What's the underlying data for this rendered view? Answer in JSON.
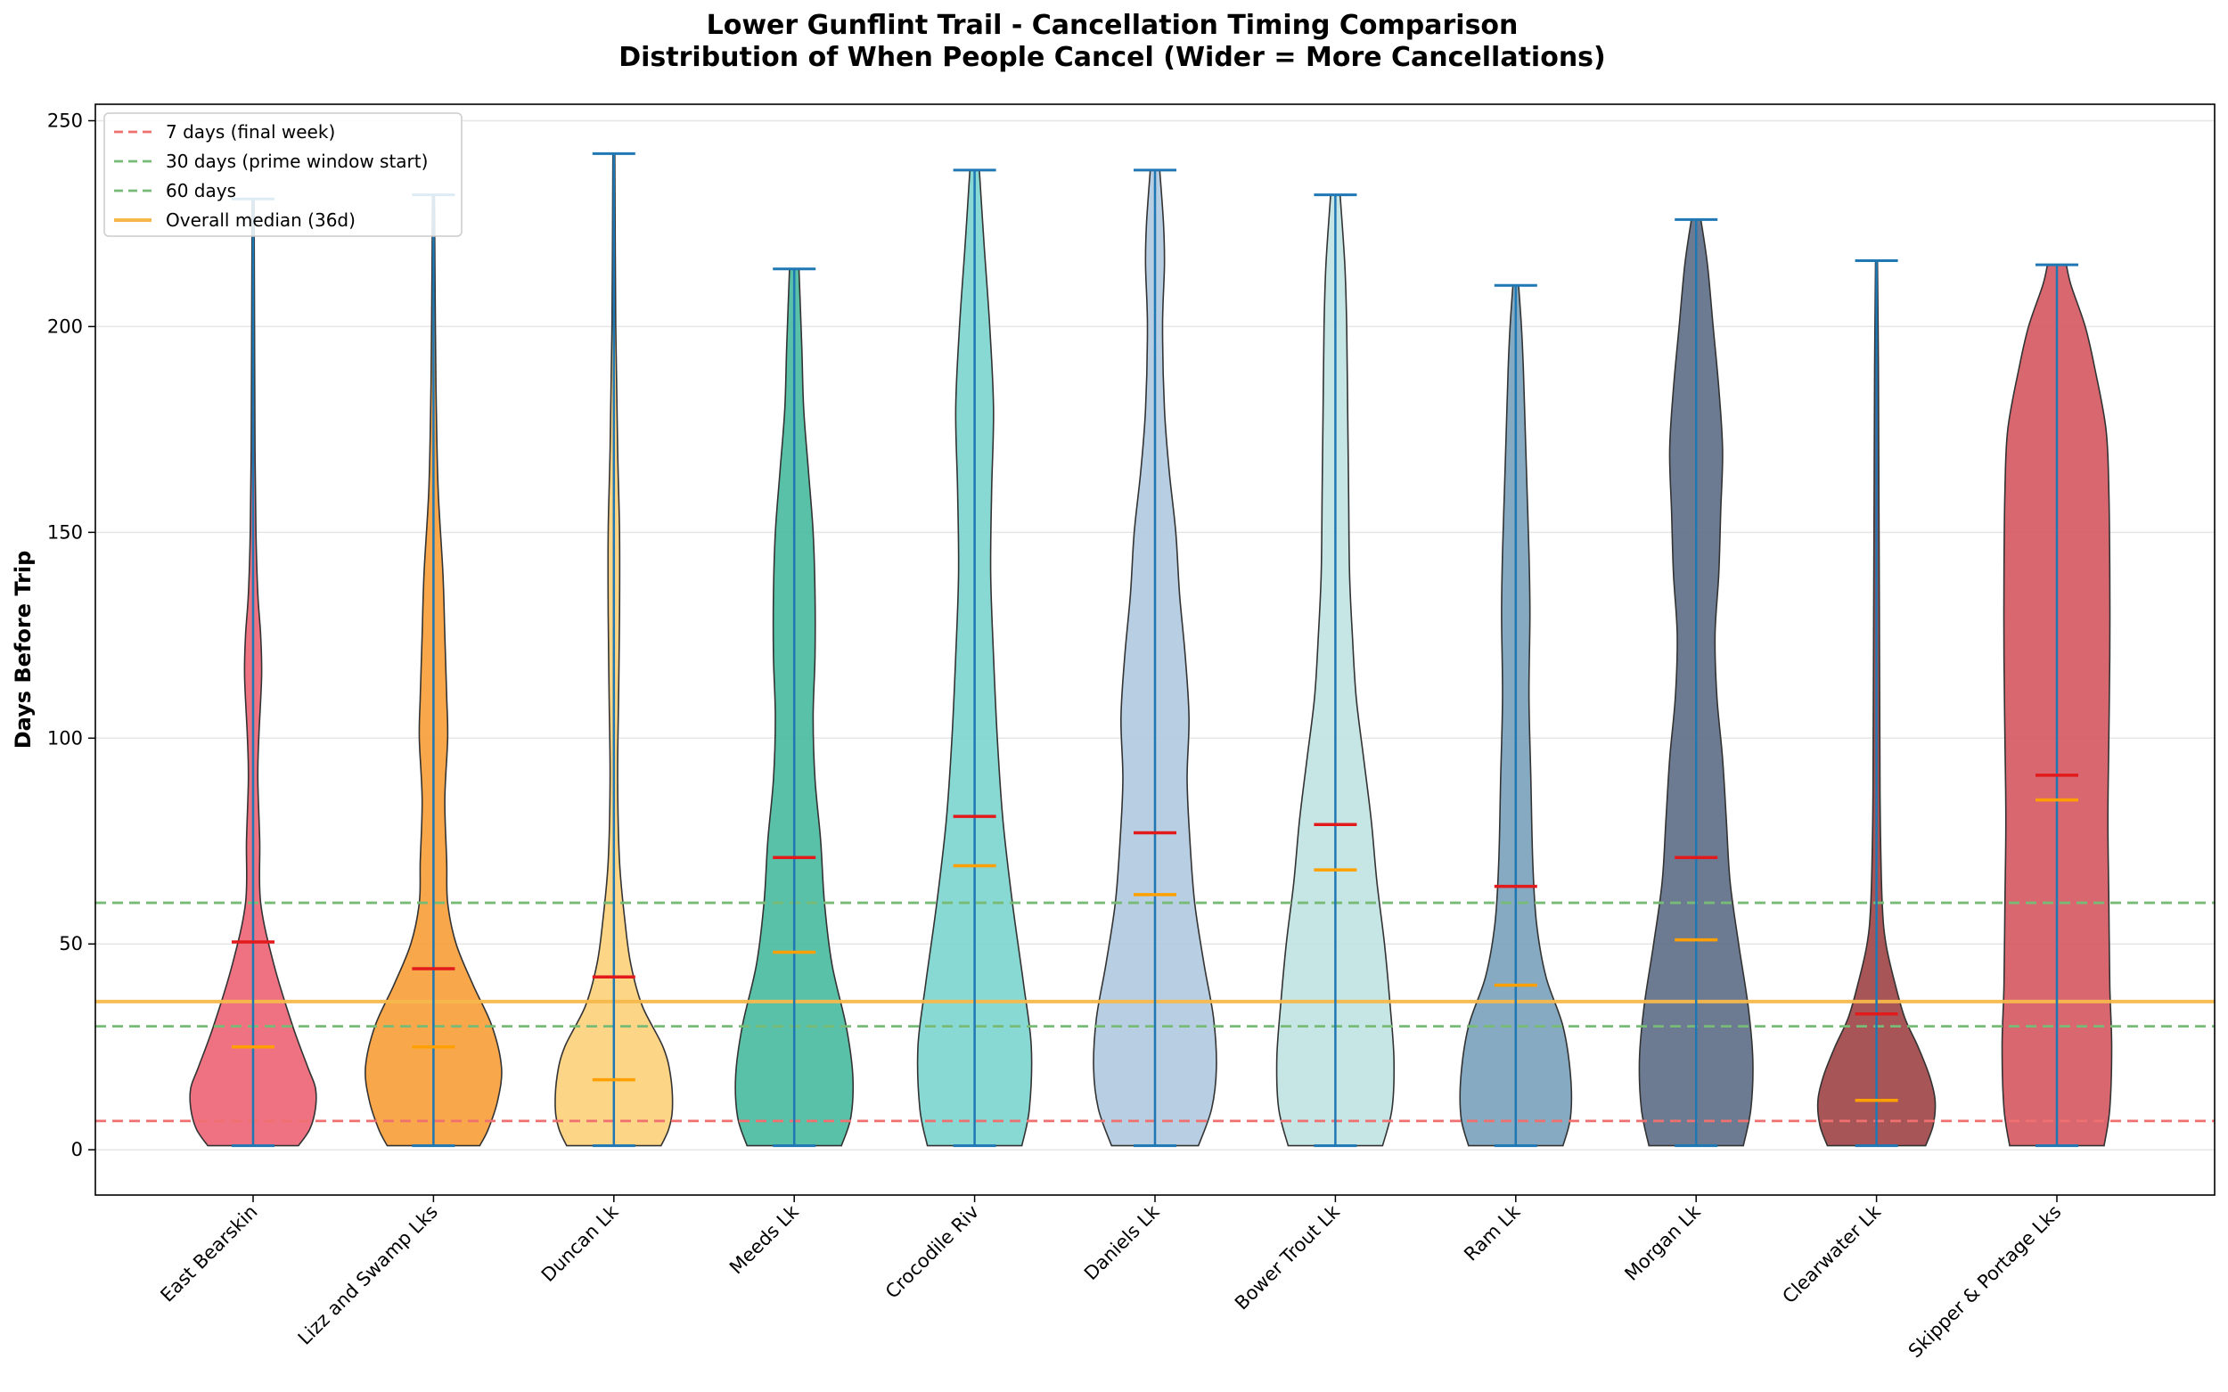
{
  "chart_data": {
    "type": "violin",
    "title": [
      "Lower Gunflint Trail - Cancellation Timing Comparison",
      "Distribution of When People Cancel (Wider = More Cancellations)"
    ],
    "xlabel": "",
    "ylabel": "Days Before Trip",
    "ylim": [
      -11,
      254
    ],
    "yticks": [
      0,
      50,
      100,
      150,
      200,
      250
    ],
    "grid": "horizontal",
    "legend_position": "top-left",
    "categories": [
      "East Bearskin",
      "Lizz and Swamp Lks",
      "Duncan Lk",
      "Meeds Lk",
      "Crocodile Riv",
      "Daniels Lk",
      "Bower Trout Lk",
      "Ram Lk",
      "Morgan Lk",
      "Clearwater Lk",
      "Skipper & Portage Lks"
    ],
    "series": [
      {
        "name": "East Bearskin",
        "color": "#EE6677",
        "min": 1,
        "max": 231,
        "mean": 50.5,
        "median": 25,
        "density": [
          [
            1,
            0.48
          ],
          [
            5,
            0.6
          ],
          [
            10,
            0.66
          ],
          [
            15,
            0.66
          ],
          [
            20,
            0.58
          ],
          [
            30,
            0.42
          ],
          [
            45,
            0.22
          ],
          [
            60,
            0.08
          ],
          [
            75,
            0.07
          ],
          [
            90,
            0.05
          ],
          [
            100,
            0.06
          ],
          [
            115,
            0.09
          ],
          [
            125,
            0.08
          ],
          [
            135,
            0.05
          ],
          [
            150,
            0.03
          ],
          [
            170,
            0.02
          ],
          [
            200,
            0.015
          ],
          [
            231,
            0.01
          ]
        ]
      },
      {
        "name": "Lizz and Swamp Lks",
        "color": "#F8A03C",
        "min": 1,
        "max": 232,
        "mean": 44,
        "median": 25,
        "density": [
          [
            1,
            0.49
          ],
          [
            5,
            0.58
          ],
          [
            12,
            0.68
          ],
          [
            20,
            0.72
          ],
          [
            30,
            0.62
          ],
          [
            40,
            0.42
          ],
          [
            50,
            0.24
          ],
          [
            60,
            0.15
          ],
          [
            70,
            0.14
          ],
          [
            85,
            0.12
          ],
          [
            100,
            0.15
          ],
          [
            110,
            0.14
          ],
          [
            125,
            0.12
          ],
          [
            140,
            0.1
          ],
          [
            160,
            0.05
          ],
          [
            180,
            0.03
          ],
          [
            200,
            0.02
          ],
          [
            232,
            0.01
          ]
        ]
      },
      {
        "name": "Duncan Lk",
        "color": "#FDD17C",
        "min": 1,
        "max": 242,
        "mean": 42,
        "median": 17,
        "density": [
          [
            1,
            0.5
          ],
          [
            5,
            0.58
          ],
          [
            10,
            0.62
          ],
          [
            18,
            0.6
          ],
          [
            25,
            0.52
          ],
          [
            35,
            0.3
          ],
          [
            45,
            0.18
          ],
          [
            55,
            0.12
          ],
          [
            70,
            0.06
          ],
          [
            90,
            0.04
          ],
          [
            110,
            0.05
          ],
          [
            130,
            0.06
          ],
          [
            150,
            0.06
          ],
          [
            170,
            0.04
          ],
          [
            200,
            0.02
          ],
          [
            242,
            0.01
          ]
        ]
      },
      {
        "name": "Meeds Lk",
        "color": "#4BBC9F",
        "min": 1,
        "max": 214,
        "mean": 71,
        "median": 48,
        "density": [
          [
            1,
            0.5
          ],
          [
            8,
            0.6
          ],
          [
            18,
            0.62
          ],
          [
            30,
            0.55
          ],
          [
            45,
            0.4
          ],
          [
            60,
            0.32
          ],
          [
            75,
            0.28
          ],
          [
            90,
            0.22
          ],
          [
            105,
            0.2
          ],
          [
            120,
            0.22
          ],
          [
            135,
            0.22
          ],
          [
            150,
            0.2
          ],
          [
            165,
            0.15
          ],
          [
            180,
            0.1
          ],
          [
            195,
            0.08
          ],
          [
            214,
            0.05
          ]
        ]
      },
      {
        "name": "Crocodile Riv",
        "color": "#7ED6CF",
        "min": 1,
        "max": 238,
        "mean": 81,
        "median": 69,
        "density": [
          [
            1,
            0.5
          ],
          [
            10,
            0.58
          ],
          [
            25,
            0.6
          ],
          [
            40,
            0.52
          ],
          [
            60,
            0.4
          ],
          [
            80,
            0.3
          ],
          [
            100,
            0.24
          ],
          [
            120,
            0.2
          ],
          [
            140,
            0.17
          ],
          [
            160,
            0.18
          ],
          [
            180,
            0.2
          ],
          [
            200,
            0.16
          ],
          [
            220,
            0.1
          ],
          [
            238,
            0.05
          ]
        ]
      },
      {
        "name": "Daniels Lk",
        "color": "#B2CAE0",
        "min": 1,
        "max": 238,
        "mean": 77,
        "median": 62,
        "density": [
          [
            1,
            0.46
          ],
          [
            10,
            0.6
          ],
          [
            20,
            0.65
          ],
          [
            32,
            0.62
          ],
          [
            45,
            0.52
          ],
          [
            60,
            0.42
          ],
          [
            75,
            0.37
          ],
          [
            90,
            0.34
          ],
          [
            105,
            0.36
          ],
          [
            120,
            0.32
          ],
          [
            135,
            0.26
          ],
          [
            150,
            0.22
          ],
          [
            165,
            0.15
          ],
          [
            180,
            0.1
          ],
          [
            200,
            0.08
          ],
          [
            215,
            0.1
          ],
          [
            225,
            0.09
          ],
          [
            238,
            0.05
          ]
        ]
      },
      {
        "name": "Bower Trout Lk",
        "color": "#C1E3E3",
        "min": 1,
        "max": 232,
        "mean": 79,
        "median": 68,
        "density": [
          [
            1,
            0.5
          ],
          [
            10,
            0.6
          ],
          [
            22,
            0.62
          ],
          [
            35,
            0.58
          ],
          [
            50,
            0.52
          ],
          [
            65,
            0.44
          ],
          [
            80,
            0.38
          ],
          [
            95,
            0.3
          ],
          [
            110,
            0.22
          ],
          [
            125,
            0.18
          ],
          [
            140,
            0.15
          ],
          [
            160,
            0.14
          ],
          [
            180,
            0.13
          ],
          [
            200,
            0.12
          ],
          [
            215,
            0.1
          ],
          [
            232,
            0.05
          ]
        ]
      },
      {
        "name": "Ram Lk",
        "color": "#7BA3BC",
        "min": 1,
        "max": 210,
        "mean": 64,
        "median": 40,
        "density": [
          [
            1,
            0.5
          ],
          [
            8,
            0.58
          ],
          [
            18,
            0.58
          ],
          [
            30,
            0.5
          ],
          [
            42,
            0.32
          ],
          [
            55,
            0.22
          ],
          [
            70,
            0.18
          ],
          [
            90,
            0.16
          ],
          [
            110,
            0.14
          ],
          [
            130,
            0.15
          ],
          [
            145,
            0.14
          ],
          [
            160,
            0.12
          ],
          [
            175,
            0.1
          ],
          [
            190,
            0.08
          ],
          [
            200,
            0.06
          ],
          [
            210,
            0.03
          ]
        ]
      },
      {
        "name": "Morgan Lk",
        "color": "#5F7089",
        "min": 1,
        "max": 226,
        "mean": 71,
        "median": 51,
        "density": [
          [
            1,
            0.5
          ],
          [
            10,
            0.58
          ],
          [
            22,
            0.6
          ],
          [
            35,
            0.55
          ],
          [
            50,
            0.45
          ],
          [
            65,
            0.36
          ],
          [
            80,
            0.32
          ],
          [
            95,
            0.28
          ],
          [
            110,
            0.22
          ],
          [
            125,
            0.2
          ],
          [
            140,
            0.24
          ],
          [
            155,
            0.26
          ],
          [
            170,
            0.28
          ],
          [
            185,
            0.24
          ],
          [
            200,
            0.18
          ],
          [
            215,
            0.12
          ],
          [
            226,
            0.05
          ]
        ]
      },
      {
        "name": "Clearwater Lk",
        "color": "#A04648",
        "min": 1,
        "max": 216,
        "mean": 33,
        "median": 12,
        "density": [
          [
            1,
            0.52
          ],
          [
            6,
            0.6
          ],
          [
            12,
            0.62
          ],
          [
            18,
            0.56
          ],
          [
            25,
            0.44
          ],
          [
            32,
            0.3
          ],
          [
            40,
            0.2
          ],
          [
            50,
            0.1
          ],
          [
            60,
            0.06
          ],
          [
            80,
            0.04
          ],
          [
            100,
            0.035
          ],
          [
            130,
            0.03
          ],
          [
            160,
            0.025
          ],
          [
            190,
            0.02
          ],
          [
            216,
            0.01
          ]
        ]
      },
      {
        "name": "Skipper & Portage Lks",
        "color": "#D65A64",
        "min": 1,
        "max": 215,
        "mean": 91,
        "median": 85,
        "density": [
          [
            1,
            0.5
          ],
          [
            10,
            0.56
          ],
          [
            25,
            0.58
          ],
          [
            40,
            0.56
          ],
          [
            60,
            0.55
          ],
          [
            80,
            0.54
          ],
          [
            100,
            0.55
          ],
          [
            120,
            0.56
          ],
          [
            140,
            0.56
          ],
          [
            160,
            0.55
          ],
          [
            175,
            0.52
          ],
          [
            190,
            0.4
          ],
          [
            200,
            0.3
          ],
          [
            210,
            0.15
          ],
          [
            215,
            0.1
          ]
        ]
      }
    ],
    "reference_lines": [
      {
        "label": "7 days (final week)",
        "value": 7,
        "color": "#F07070",
        "style": "dashed"
      },
      {
        "label": "30 days (prime window start)",
        "value": 30,
        "color": "#77BB77",
        "style": "dashed"
      },
      {
        "label": "60 days",
        "value": 60,
        "color": "#77BB77",
        "style": "dashed"
      },
      {
        "label": "Overall median (36d)",
        "value": 36,
        "color": "#F7B84B",
        "style": "solid"
      }
    ],
    "mean_marker_color": "#E31A1C",
    "median_marker_color": "#FFA000",
    "extrema_color": "#1F77B4"
  }
}
